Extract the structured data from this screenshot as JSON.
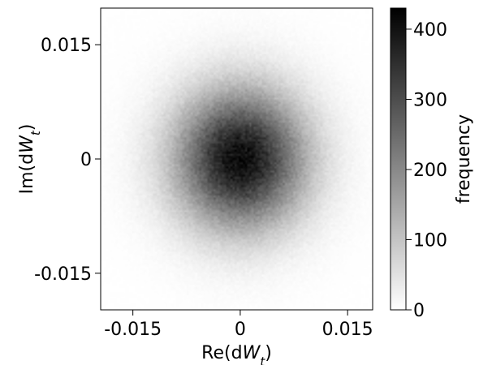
{
  "chart_data": {
    "type": "heatmap",
    "title": "",
    "xlabel": {
      "prefix": "Re(d",
      "var": "W",
      "sub": "t",
      "suffix": ")"
    },
    "ylabel": {
      "prefix": "Im(d",
      "var": "W",
      "sub": "t",
      "suffix": ")"
    },
    "xlim": [
      -0.0195,
      0.0185
    ],
    "ylim": [
      -0.0198,
      0.0198
    ],
    "xticks": [
      {
        "value": -0.015,
        "label": "-0.015"
      },
      {
        "value": 0,
        "label": "0"
      },
      {
        "value": 0.015,
        "label": "0.015"
      }
    ],
    "yticks": [
      {
        "value": 0.015,
        "label": "0.015"
      },
      {
        "value": 0,
        "label": "0"
      },
      {
        "value": -0.015,
        "label": "-0.015"
      }
    ],
    "distribution": {
      "kind": "2d-gaussian-histogram",
      "center": [
        0,
        0
      ],
      "sigma": [
        0.0062,
        0.0062
      ],
      "peak_frequency": 410
    },
    "colorbar": {
      "label": "frequency",
      "min": 0,
      "max": 430,
      "ticks": [
        {
          "value": 0,
          "label": "0"
        },
        {
          "value": 100,
          "label": "100"
        },
        {
          "value": 200,
          "label": "200"
        },
        {
          "value": 300,
          "label": "300"
        },
        {
          "value": 400,
          "label": "400"
        }
      ],
      "colormap": "white-to-black",
      "low_color": "#ffffff",
      "high_color": "#000000"
    },
    "grid": false
  }
}
